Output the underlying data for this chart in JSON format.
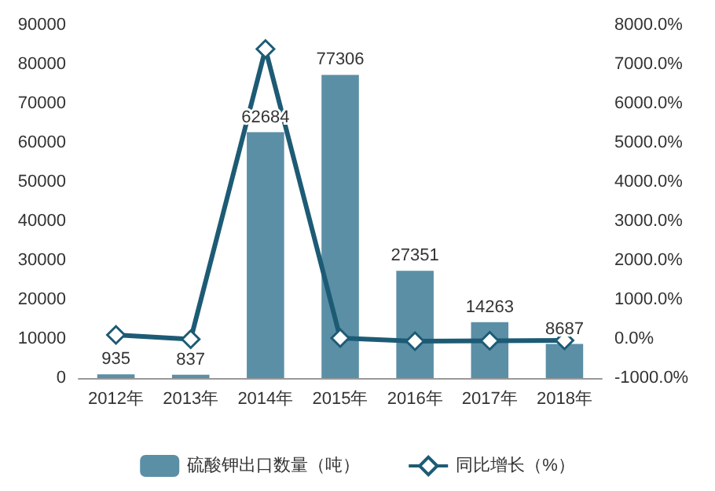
{
  "chart_data": {
    "type": "bar",
    "categories": [
      "2012年",
      "2013年",
      "2014年",
      "2015年",
      "2016年",
      "2017年",
      "2018年"
    ],
    "series": [
      {
        "name": "硫酸钾出口数量（吨）",
        "color": "#5b8fa6",
        "values": [
          935,
          837,
          62684,
          77306,
          27351,
          14263,
          8687
        ],
        "data_labels": true
      },
      {
        "name": "同比增长（%）",
        "type": "line",
        "axis": "y2",
        "color": "#1d5b75",
        "marker": "diamond",
        "values": [
          100,
          -10,
          7390,
          20,
          -60,
          -50,
          -40
        ]
      }
    ],
    "ylim": [
      0,
      90000
    ],
    "yticks": [
      0,
      10000,
      20000,
      30000,
      40000,
      50000,
      60000,
      70000,
      80000,
      90000
    ],
    "y2lim": [
      -1000,
      8000
    ],
    "y2ticks": [
      {
        "value": -1000,
        "label": "-1000.0%"
      },
      {
        "value": 0,
        "label": "0.0%"
      },
      {
        "value": 1000,
        "label": "1000.0%"
      },
      {
        "value": 2000,
        "label": "2000.0%"
      },
      {
        "value": 3000,
        "label": "3000.0%"
      },
      {
        "value": 4000,
        "label": "4000.0%"
      },
      {
        "value": 5000,
        "label": "5000.0%"
      },
      {
        "value": 6000,
        "label": "6000.0%"
      },
      {
        "value": 7000,
        "label": "7000.0%"
      },
      {
        "value": 8000,
        "label": "8000.0%"
      }
    ],
    "grid": false,
    "legend": "bottom"
  }
}
